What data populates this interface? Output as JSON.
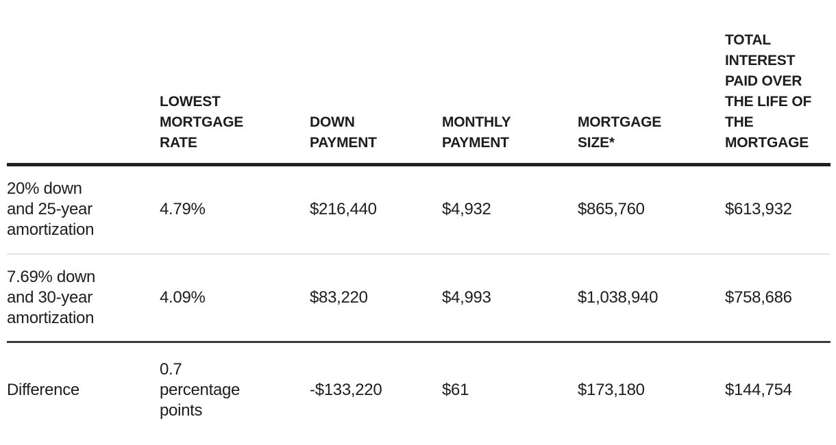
{
  "colors": {
    "background": "#ffffff",
    "text": "#1d1d1d",
    "header_rule": "#231f20",
    "row_divider_light": "#e4e4e4",
    "row_divider_dark": "#3a3a3a"
  },
  "table": {
    "headers": [
      {
        "label": ""
      },
      {
        "label": "LOWEST\nMORTGAGE\nRATE"
      },
      {
        "label": "DOWN\nPAYMENT"
      },
      {
        "label": "MONTHLY\nPAYMENT"
      },
      {
        "label": "MORTGAGE\nSIZE*"
      },
      {
        "label": "TOTAL\nINTEREST\nPAID OVER\nTHE LIFE OF\nTHE\nMORTGAGE"
      }
    ],
    "rows": [
      {
        "label": "20% down\nand 25-year\namortization",
        "lowest_rate": "4.79%",
        "down_payment": "$216,440",
        "monthly_payment": "$4,932",
        "mortgage_size": "$865,760",
        "total_interest": "$613,932"
      },
      {
        "label": "7.69% down\nand 30-year\namortization",
        "lowest_rate": "4.09%",
        "down_payment": "$83,220",
        "monthly_payment": "$4,993",
        "mortgage_size": "$1,038,940",
        "total_interest": "$758,686"
      },
      {
        "label": "Difference",
        "lowest_rate": "0.7\npercentage\npoints",
        "down_payment": "-$133,220",
        "monthly_payment": "$61",
        "mortgage_size": "$173,180",
        "total_interest": "$144,754"
      }
    ]
  },
  "chart_data": {
    "type": "table",
    "columns": [
      "",
      "LOWEST MORTGAGE RATE",
      "DOWN PAYMENT",
      "MONTHLY PAYMENT",
      "MORTGAGE SIZE*",
      "TOTAL INTEREST PAID OVER THE LIFE OF THE MORTGAGE"
    ],
    "rows": [
      [
        "20% down and 25-year amortization",
        "4.79%",
        "$216,440",
        "$4,932",
        "$865,760",
        "$613,932"
      ],
      [
        "7.69% down and 30-year amortization",
        "4.09%",
        "$83,220",
        "$4,993",
        "$1,038,940",
        "$758,686"
      ],
      [
        "Difference",
        "0.7 percentage points",
        "-$133,220",
        "$61",
        "$173,180",
        "$144,754"
      ]
    ]
  }
}
